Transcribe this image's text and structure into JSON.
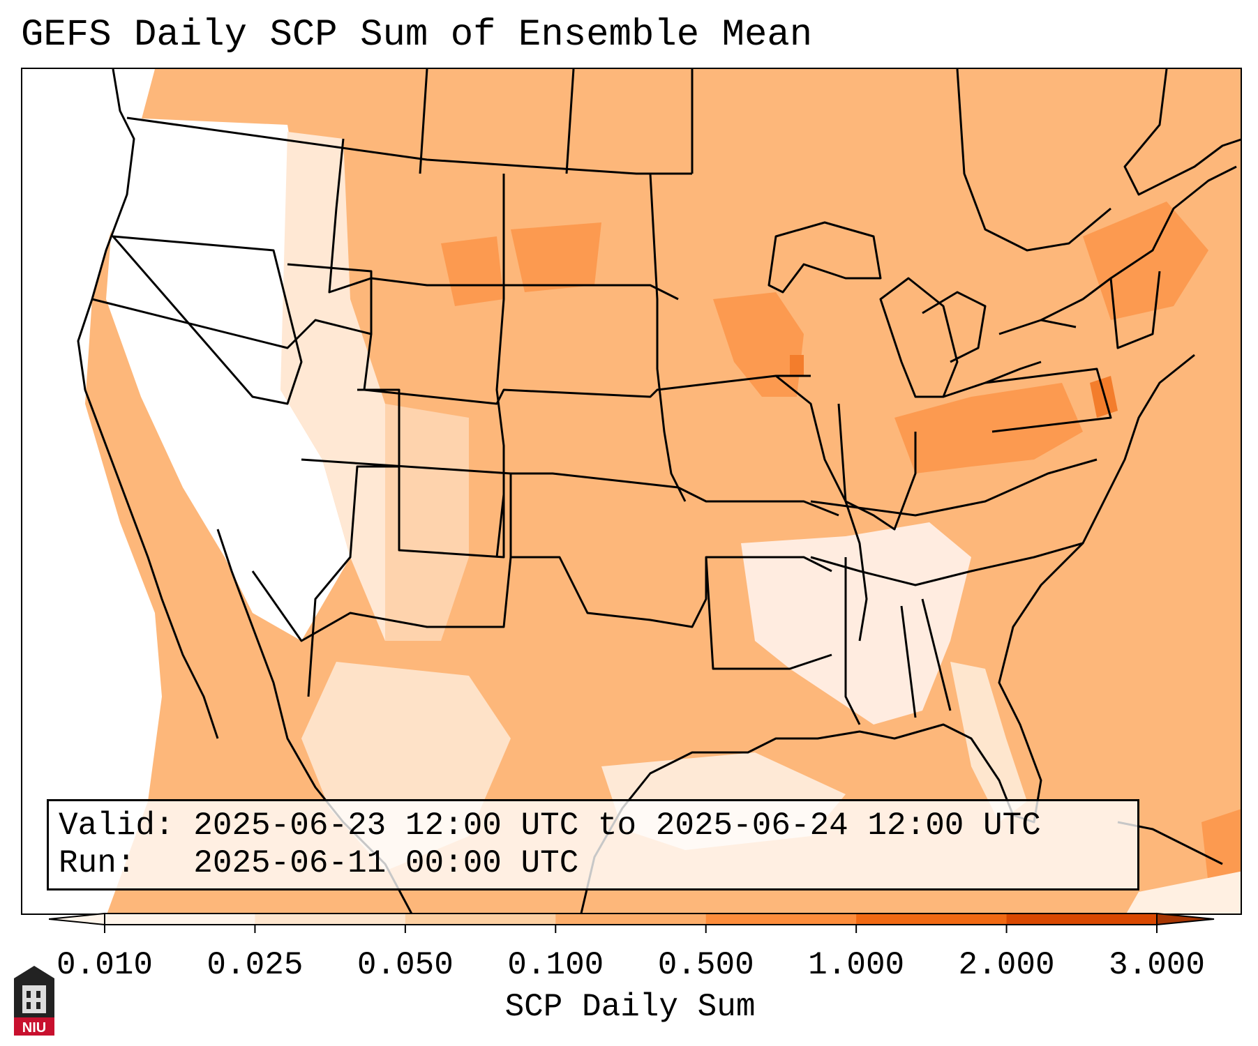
{
  "title": "GEFS Daily SCP Sum of Ensemble Mean",
  "info": {
    "valid": "Valid: 2025-06-23 12:00 UTC to 2025-06-24 12:00 UTC",
    "run": "Run:   2025-06-11 00:00 UTC"
  },
  "colorbar": {
    "label": "SCP Daily Sum",
    "ticks": [
      "0.010",
      "0.025",
      "0.050",
      "0.100",
      "0.500",
      "1.000",
      "2.000",
      "3.000"
    ],
    "colors": [
      "#fff5eb",
      "#fee6ce",
      "#fdd0a2",
      "#fdae6b",
      "#fd8d3c",
      "#f16913",
      "#d94801",
      "#a63603"
    ]
  },
  "logo": {
    "text": "NIU"
  }
}
